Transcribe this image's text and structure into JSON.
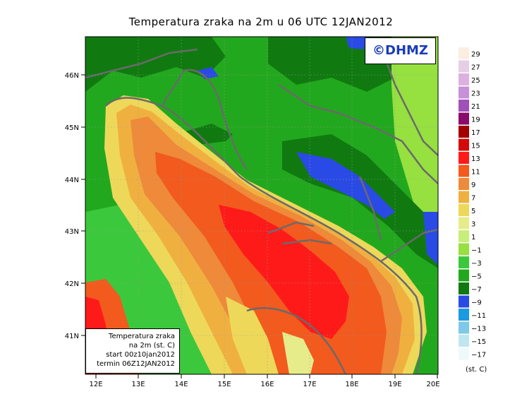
{
  "title": "Temperatura zraka na 2m u 06 UTC 12JAN2012",
  "credit": "©DHMZ",
  "info_box": {
    "line1": "Temperatura zraka",
    "line2": "na 2m (st. C)",
    "line3": "start 00z10jan2012",
    "line4": "termin 06Z12JAN2012"
  },
  "axes": {
    "lon_labels": [
      "12E",
      "13E",
      "14E",
      "15E",
      "16E",
      "17E",
      "18E",
      "19E",
      "20E"
    ],
    "lat_labels": [
      "46N",
      "45N",
      "44N",
      "43N",
      "42N",
      "41N"
    ]
  },
  "legend": {
    "unit": "(st. C)",
    "labels": [
      "29",
      "27",
      "25",
      "23",
      "21",
      "19",
      "17",
      "15",
      "13",
      "11",
      "9",
      "7",
      "5",
      "3",
      "1",
      "−1",
      "−3",
      "−5",
      "−7",
      "−9",
      "−11",
      "−13",
      "−15",
      "−17"
    ],
    "colors": [
      "#fbeee0",
      "#e6cfe6",
      "#dcb0e0",
      "#c890d8",
      "#a050b8",
      "#8a0a6a",
      "#a00000",
      "#d40a0a",
      "#ff1a1a",
      "#f25a1e",
      "#ee8a3a",
      "#f0b040",
      "#eed85a",
      "#e6ec8a",
      "#c8ee7a",
      "#96e040",
      "#3cc83c",
      "#22a81e",
      "#107a10",
      "#2a4ae6",
      "#1a9ae0",
      "#7ec8e8",
      "#bfe6ee",
      "#eefafa"
    ]
  }
}
